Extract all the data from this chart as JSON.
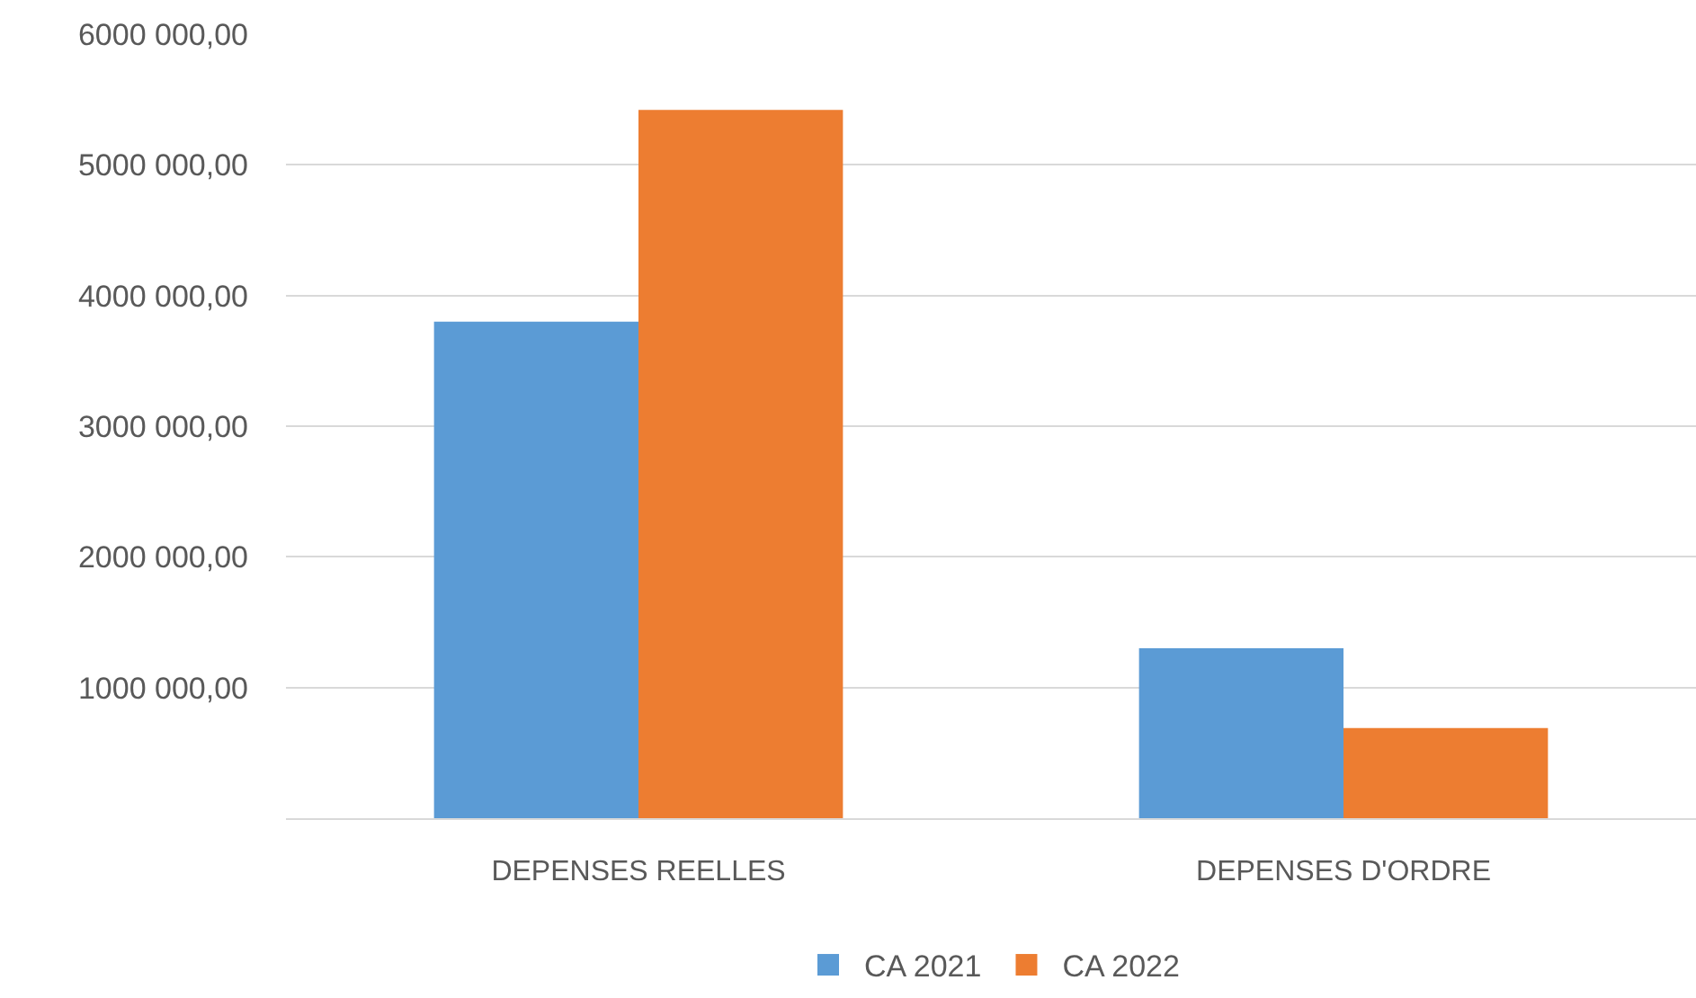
{
  "chart_data": {
    "type": "bar",
    "categories": [
      "DEPENSES REELLES",
      "DEPENSES D'ORDRE"
    ],
    "series": [
      {
        "name": "CA 2021",
        "color": "#5b9bd5",
        "values": [
          3800000,
          1300000
        ]
      },
      {
        "name": "CA 2022",
        "color": "#ed7d31",
        "values": [
          5420000,
          690000
        ]
      }
    ],
    "ylim": [
      0,
      6000000
    ],
    "yticks": [
      {
        "value": 0,
        "label": null
      },
      {
        "value": 1000000,
        "label": "1000 000,00"
      },
      {
        "value": 2000000,
        "label": "2000 000,00"
      },
      {
        "value": 3000000,
        "label": "3000 000,00"
      },
      {
        "value": 4000000,
        "label": "4000 000,00"
      },
      {
        "value": 5000000,
        "label": "5000 000,00"
      },
      {
        "value": 6000000,
        "label": "6000 000,00"
      }
    ],
    "grid": "y",
    "legend": "bottom"
  }
}
